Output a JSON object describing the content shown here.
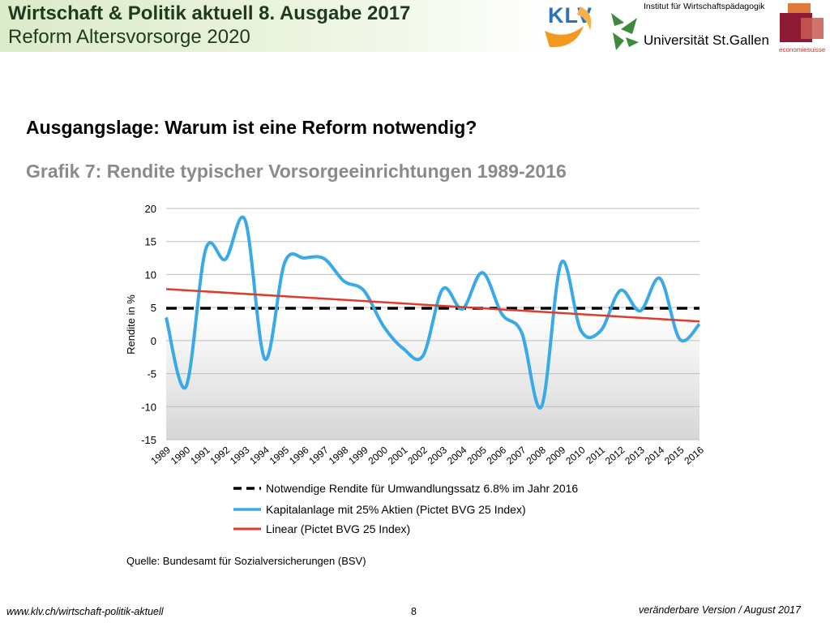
{
  "header": {
    "title": "Wirtschaft & Politik aktuell 8. Ausgabe 2017",
    "subtitle": "Reform Altersvorsorge 2020",
    "logos": {
      "klv": "KLV",
      "hsg_institute": "Institut für Wirtschaftspädagogik",
      "hsg_name": "Universität St.Gallen",
      "economiesuisse": "economiesuisse"
    }
  },
  "slide": {
    "heading": "Ausgangslage: Warum ist eine Reform notwendig?",
    "chart_title": "Grafik 7: Rendite typischer Vorsorgeeinrichtungen 1989-2016",
    "source": "Quelle: Bundesamt für Sozialversicherungen (BSV)"
  },
  "footer": {
    "url": "www.klv.ch/wirtschaft-politik-aktuell",
    "page": "8",
    "version": "veränderbare Version / August 2017"
  },
  "colors": {
    "series_return": "#3aa9e8",
    "series_linear": "#e03a2f",
    "series_required": "#000000",
    "header_band": "#dcebc9",
    "title_gray": "#8a8a8a"
  },
  "chart_data": {
    "type": "line",
    "title": "Grafik 7: Rendite typischer Vorsorgeeinrichtungen 1989-2016",
    "xlabel": "",
    "ylabel": "Rendite in %",
    "ylim": [
      -15,
      20
    ],
    "yticks": [
      20,
      15,
      10,
      5,
      0,
      -5,
      -10,
      -15
    ],
    "x": [
      "1989",
      "1990",
      "1991",
      "1992",
      "1993",
      "1994",
      "1995",
      "1996",
      "1997",
      "1998",
      "1999",
      "2000",
      "2001",
      "2002",
      "2003",
      "2004",
      "2005",
      "2006",
      "2007",
      "2008",
      "2009",
      "2010",
      "2011",
      "2012",
      "2013",
      "2014",
      "2015",
      "2016"
    ],
    "series": [
      {
        "name": "Notwendige Rendite für Umwandlungssatz 6.8% im Jahr 2016",
        "style": "dashed",
        "values": [
          4.9,
          4.9,
          4.9,
          4.9,
          4.9,
          4.9,
          4.9,
          4.9,
          4.9,
          4.9,
          4.9,
          4.9,
          4.9,
          4.9,
          4.9,
          4.9,
          4.9,
          4.9,
          4.9,
          4.9,
          4.9,
          4.9,
          4.9,
          4.9,
          4.9,
          4.9,
          4.9,
          4.9
        ]
      },
      {
        "name": "Kapitalanlage mit 25% Aktien (Pictet BVG 25 Index)",
        "style": "solid",
        "values": [
          3.5,
          -7.0,
          13.8,
          12.3,
          18.2,
          -2.8,
          11.8,
          12.5,
          12.4,
          9.0,
          7.6,
          2.2,
          -1.2,
          -2.3,
          7.8,
          4.8,
          10.3,
          4.0,
          1.2,
          -10.0,
          11.8,
          1.5,
          1.5,
          7.6,
          4.5,
          9.4,
          0.2,
          2.5
        ]
      },
      {
        "name": "Linear (Pictet BVG 25 Index)",
        "style": "solid",
        "values": [
          7.8,
          7.62,
          7.44,
          7.26,
          7.08,
          6.9,
          6.72,
          6.54,
          6.36,
          6.18,
          6.0,
          5.82,
          5.64,
          5.46,
          5.28,
          5.1,
          4.92,
          4.74,
          4.56,
          4.38,
          4.2,
          4.02,
          3.84,
          3.66,
          3.48,
          3.3,
          3.12,
          2.9
        ]
      }
    ],
    "grid": true,
    "legend": "bottom"
  }
}
